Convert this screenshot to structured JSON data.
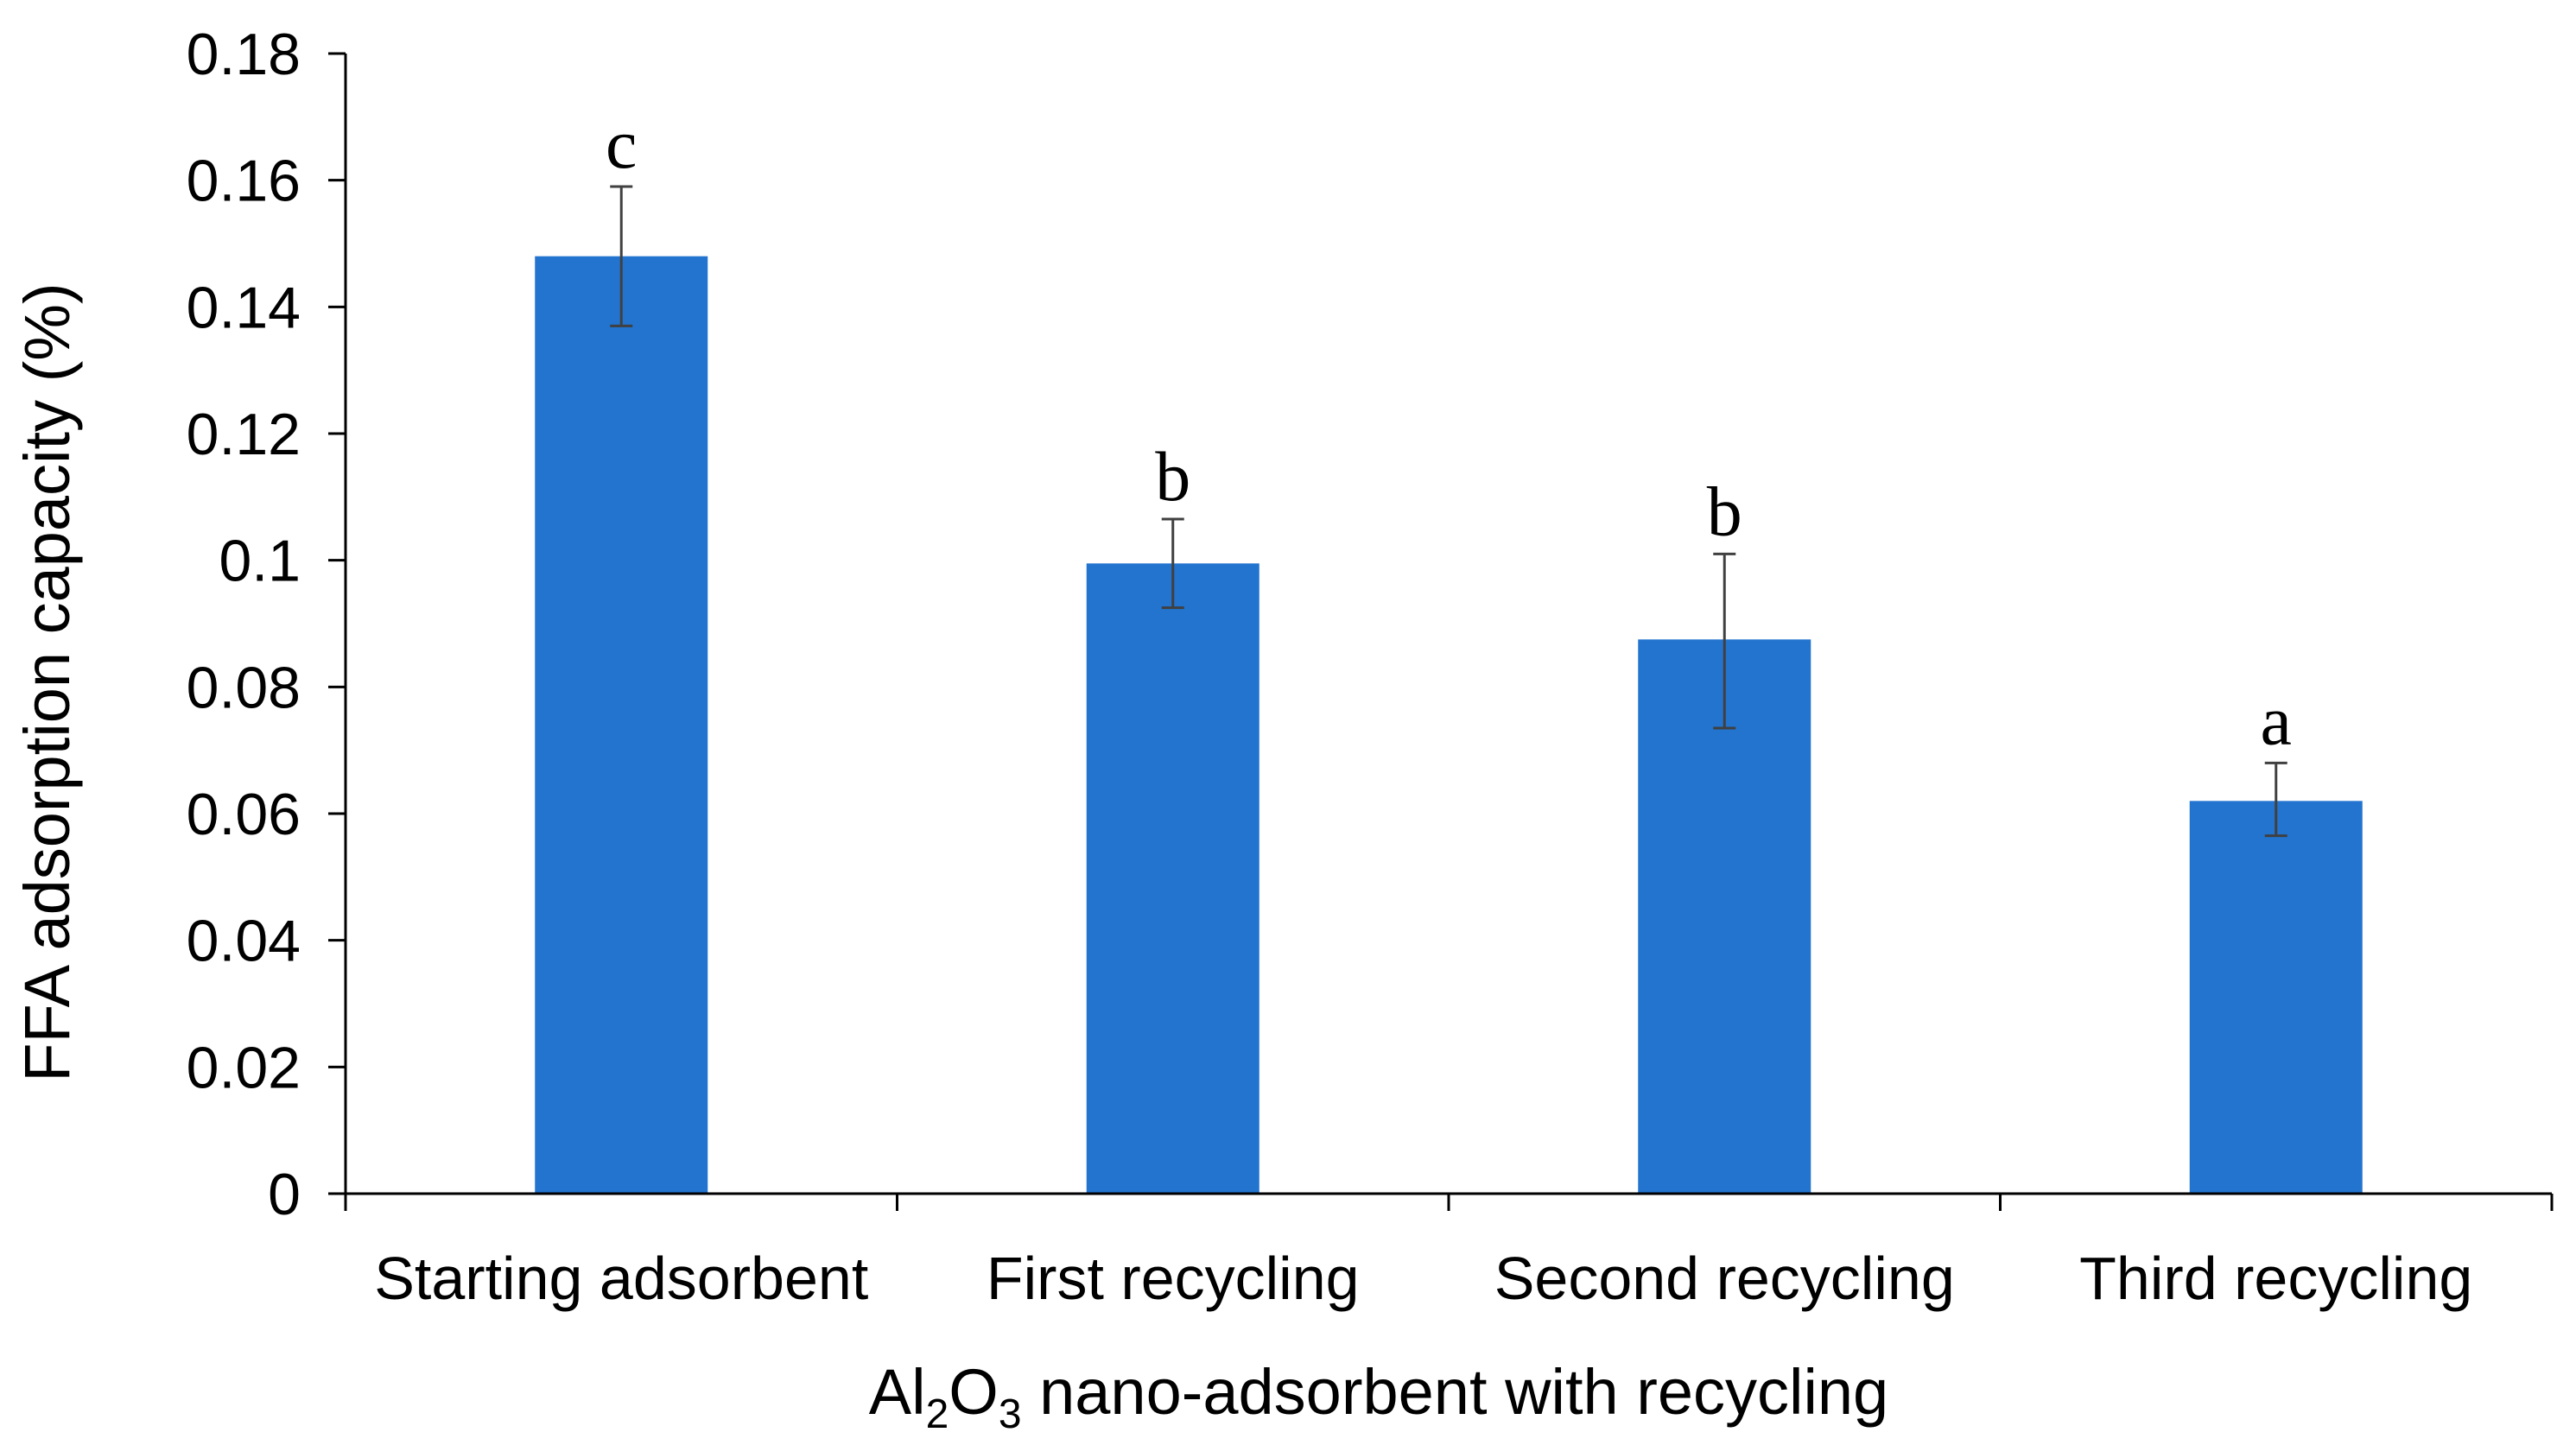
{
  "chart_data": {
    "type": "bar",
    "categories": [
      "Starting adsorbent",
      "First recycling",
      "Second recycling",
      "Third recycling"
    ],
    "values": [
      0.148,
      0.0995,
      0.0875,
      0.062
    ],
    "error_upper": [
      0.159,
      0.1065,
      0.101,
      0.068
    ],
    "error_lower": [
      0.137,
      0.0925,
      0.0735,
      0.0565
    ],
    "significance_letters": [
      "c",
      "b",
      "b",
      "a"
    ],
    "ylabel": "FFA adsorption capacity (%)",
    "xlabel": {
      "prefix": "Al",
      "sub1": "2",
      "mid": "O",
      "sub2": "3",
      "suffix": " nano-adsorbent with recycling"
    },
    "ylim": [
      0,
      0.18
    ],
    "yticks": [
      "0",
      "0.02",
      "0.04",
      "0.06",
      "0.08",
      "0.1",
      "0.12",
      "0.14",
      "0.16",
      "0.18"
    ],
    "ytick_values": [
      0,
      0.02,
      0.04,
      0.06,
      0.08,
      0.1,
      0.12,
      0.14,
      0.16,
      0.18
    ],
    "grid": false,
    "bar_color": "#2274cf",
    "error_bar_color": "#404040"
  }
}
